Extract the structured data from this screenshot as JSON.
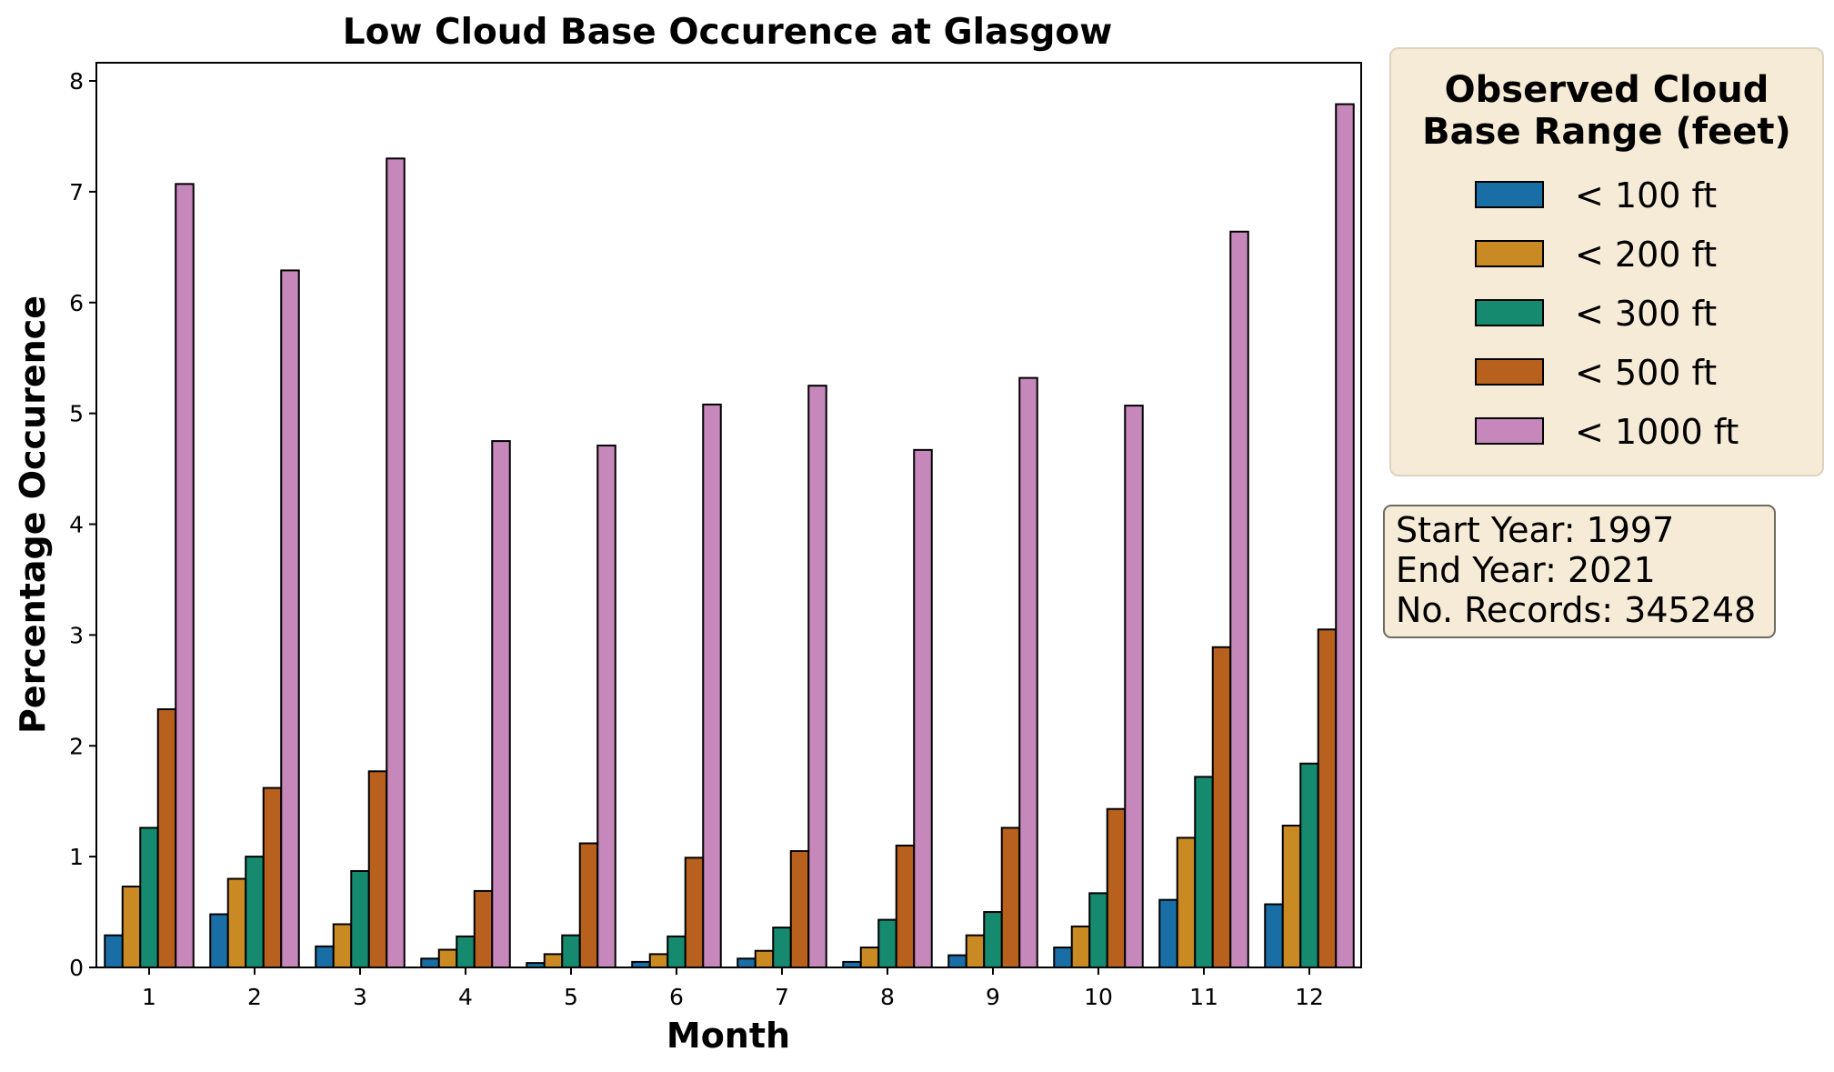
{
  "chart_data": {
    "type": "bar",
    "title": "Low Cloud Base Occurence at Glasgow",
    "xlabel": "Month",
    "ylabel": "Percentage Occurence",
    "ylim": [
      0,
      8.2
    ],
    "yticks": [
      0,
      1,
      2,
      3,
      4,
      5,
      6,
      7,
      8
    ],
    "categories": [
      "1",
      "2",
      "3",
      "4",
      "5",
      "6",
      "7",
      "8",
      "9",
      "10",
      "11",
      "12"
    ],
    "series": [
      {
        "name": "< 100 ft",
        "color": "#1a6ea6",
        "values": [
          0.29,
          0.48,
          0.19,
          0.08,
          0.04,
          0.05,
          0.08,
          0.05,
          0.11,
          0.18,
          0.61,
          0.57
        ]
      },
      {
        "name": "< 200 ft",
        "color": "#c98a24",
        "values": [
          0.73,
          0.8,
          0.39,
          0.16,
          0.12,
          0.12,
          0.15,
          0.18,
          0.29,
          0.37,
          1.17,
          1.28
        ]
      },
      {
        "name": "< 300 ft",
        "color": "#168a6e",
        "values": [
          1.26,
          1.0,
          0.87,
          0.28,
          0.29,
          0.28,
          0.36,
          0.43,
          0.5,
          0.67,
          1.72,
          1.84
        ]
      },
      {
        "name": "< 500 ft",
        "color": "#b8611e",
        "values": [
          2.33,
          1.62,
          1.77,
          0.69,
          1.12,
          0.99,
          1.05,
          1.1,
          1.26,
          1.43,
          2.89,
          3.05
        ]
      },
      {
        "name": "< 1000 ft",
        "color": "#c687bb",
        "values": [
          7.07,
          6.29,
          7.3,
          4.75,
          4.71,
          5.08,
          5.25,
          4.67,
          5.32,
          5.07,
          6.64,
          7.79
        ]
      }
    ],
    "legend": {
      "title_line1": "Observed Cloud",
      "title_line2": "Base Range (feet)",
      "position": "right"
    },
    "grid": false
  },
  "info": {
    "start_year": "Start Year: 1997",
    "end_year": "End Year: 2021",
    "records": "No. Records: 345248"
  }
}
